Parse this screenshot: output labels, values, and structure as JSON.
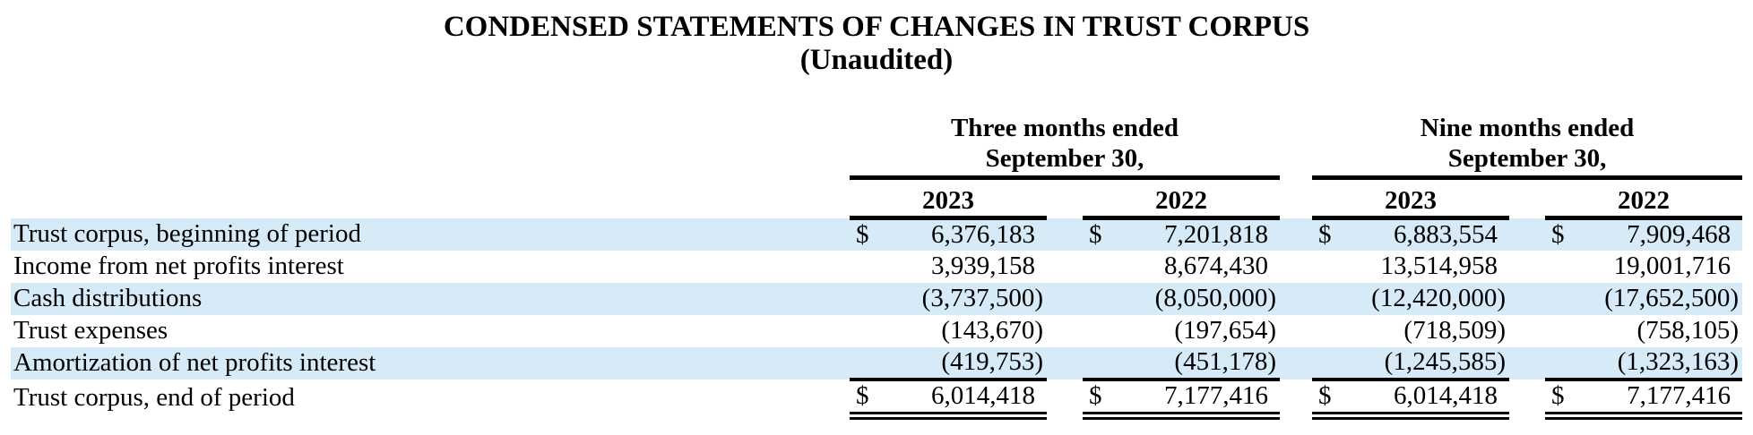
{
  "title": {
    "line1": "CONDENSED STATEMENTS OF CHANGES IN TRUST CORPUS",
    "line2": "(Unaudited)"
  },
  "table": {
    "column_groups": [
      {
        "label_line1": "Three months ended",
        "label_line2": "September 30,",
        "years": [
          "2023",
          "2022"
        ]
      },
      {
        "label_line1": "Nine months ended",
        "label_line2": "September 30,",
        "years": [
          "2023",
          "2022"
        ]
      }
    ],
    "rows": [
      {
        "label": "Trust corpus, beginning of period",
        "currency": "$",
        "values": [
          "6,376,183",
          "7,201,818",
          "6,883,554",
          "7,909,468"
        ],
        "highlight": true,
        "total": false
      },
      {
        "label": "Income from net profits interest",
        "currency": "",
        "values": [
          "3,939,158",
          "8,674,430",
          "13,514,958",
          "19,001,716"
        ],
        "highlight": false,
        "total": false
      },
      {
        "label": "Cash distributions",
        "currency": "",
        "values": [
          "(3,737,500)",
          "(8,050,000)",
          "(12,420,000)",
          "(17,652,500)"
        ],
        "highlight": true,
        "total": false
      },
      {
        "label": "Trust expenses",
        "currency": "",
        "values": [
          "(143,670)",
          "(197,654)",
          "(718,509)",
          "(758,105)"
        ],
        "highlight": false,
        "total": false
      },
      {
        "label": "Amortization of net profits interest",
        "currency": "",
        "values": [
          "(419,753)",
          "(451,178)",
          "(1,245,585)",
          "(1,323,163)"
        ],
        "highlight": true,
        "total": false
      },
      {
        "label": "Trust corpus, end of period",
        "currency": "$",
        "values": [
          "6,014,418",
          "7,177,416",
          "6,014,418",
          "7,177,416"
        ],
        "highlight": false,
        "total": true
      }
    ]
  },
  "colors": {
    "row_highlight": "#d6eaf8",
    "text": "#000000",
    "rule": "#000000"
  }
}
